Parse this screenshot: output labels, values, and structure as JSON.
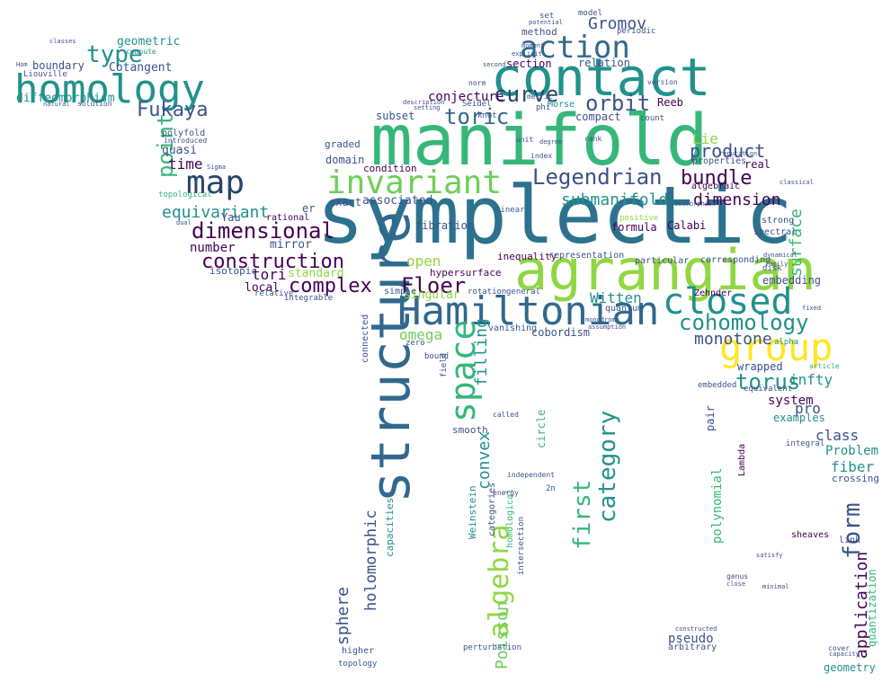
{
  "palette": {
    "dark_purple": "#440154",
    "indigo": "#3b528b",
    "blue": "#31688e",
    "steel_blue": "#2c728e",
    "teal": "#21918c",
    "green": "#35b779",
    "light_green": "#6ece58",
    "lime": "#90d743",
    "yellow": "#fde725",
    "dark_navy": "#26456e"
  },
  "words": [
    {
      "text": "symplectic",
      "color": "steel_blue"
    },
    {
      "text": "manifold",
      "color": "green"
    },
    {
      "text": "agrangian",
      "color": "lime"
    },
    {
      "text": "contact",
      "color": "teal"
    },
    {
      "text": "Hamiltonian",
      "color": "blue"
    },
    {
      "text": "structure",
      "color": "blue"
    },
    {
      "text": "homology",
      "color": "teal"
    },
    {
      "text": "invariant",
      "color": "light_green"
    },
    {
      "text": "action",
      "color": "blue"
    },
    {
      "text": "closed",
      "color": "teal"
    },
    {
      "text": "group",
      "color": "yellow"
    },
    {
      "text": "map",
      "color": "dark_navy"
    },
    {
      "text": "space",
      "color": "green"
    },
    {
      "text": "Legendrian",
      "color": "indigo"
    },
    {
      "text": "cohomology",
      "color": "teal"
    },
    {
      "text": "algebra",
      "color": "lime"
    },
    {
      "text": "construction",
      "color": "dark_purple"
    },
    {
      "text": "dimensional",
      "color": "dark_purple"
    },
    {
      "text": "Floer",
      "color": "dark_purple"
    },
    {
      "text": "complex",
      "color": "dark_purple"
    },
    {
      "text": "toric",
      "color": "blue"
    },
    {
      "text": "curve",
      "color": "dark_navy"
    },
    {
      "text": "orbit",
      "color": "indigo"
    },
    {
      "text": "bundle",
      "color": "dark_purple"
    },
    {
      "text": "Fukaya",
      "color": "indigo"
    },
    {
      "text": "type",
      "color": "teal"
    },
    {
      "text": "torus",
      "color": "teal"
    },
    {
      "text": "category",
      "color": "teal"
    },
    {
      "text": "first",
      "color": "green"
    },
    {
      "text": "form",
      "color": "indigo"
    },
    {
      "text": "point",
      "color": "green"
    },
    {
      "text": "equivariant",
      "color": "teal"
    },
    {
      "text": "product",
      "color": "indigo"
    },
    {
      "text": "Poisson",
      "color": "light_green"
    },
    {
      "text": "holomorphic",
      "color": "indigo"
    },
    {
      "text": "submanifold",
      "color": "teal"
    },
    {
      "text": "monotone",
      "color": "indigo"
    },
    {
      "text": "application",
      "color": "dark_purple"
    },
    {
      "text": "Gromov",
      "color": "indigo"
    },
    {
      "text": "dimension",
      "color": "dark_purple"
    },
    {
      "text": "surface",
      "color": "green"
    },
    {
      "text": "Witten",
      "color": "teal"
    },
    {
      "text": "sphere",
      "color": "indigo"
    },
    {
      "text": "filling",
      "color": "teal"
    },
    {
      "text": "convex",
      "color": "teal"
    },
    {
      "text": "fiber",
      "color": "teal"
    },
    {
      "text": "time",
      "color": "dark_purple"
    },
    {
      "text": "open",
      "color": "lime"
    },
    {
      "text": "omega",
      "color": "light_green"
    },
    {
      "text": "pro",
      "color": "indigo"
    },
    {
      "text": "infty",
      "color": "teal"
    },
    {
      "text": "Lie",
      "color": "lime"
    },
    {
      "text": "tori",
      "color": "dark_purple"
    },
    {
      "text": "class",
      "color": "indigo"
    },
    {
      "text": "system",
      "color": "dark_purple"
    },
    {
      "text": "Problem",
      "color": "teal"
    },
    {
      "text": "polynomial",
      "color": "green"
    },
    {
      "text": "geometry",
      "color": "teal"
    },
    {
      "text": "quantization",
      "color": "green"
    },
    {
      "text": "number",
      "color": "dark_purple"
    },
    {
      "text": "mirror",
      "color": "indigo"
    },
    {
      "text": "local",
      "color": "dark_purple"
    },
    {
      "text": "isotopic",
      "color": "indigo"
    },
    {
      "text": "standard",
      "color": "lime"
    },
    {
      "text": "cobordism",
      "color": "indigo"
    },
    {
      "text": "capacities",
      "color": "teal"
    },
    {
      "text": "geometric",
      "color": "teal"
    },
    {
      "text": "Cotangent",
      "color": "indigo"
    },
    {
      "text": "boundary",
      "color": "indigo"
    },
    {
      "text": "diffeomorphism",
      "color": "teal"
    },
    {
      "text": "Liouville",
      "color": "indigo"
    },
    {
      "text": "method",
      "color": "indigo"
    },
    {
      "text": "section",
      "color": "dark_purple"
    },
    {
      "text": "relation",
      "color": "indigo"
    },
    {
      "text": "conjecture",
      "color": "dark_purple"
    },
    {
      "text": "subset",
      "color": "indigo"
    },
    {
      "text": "compact",
      "color": "indigo"
    },
    {
      "text": "Reeb",
      "color": "dark_purple"
    },
    {
      "text": "exact",
      "color": "indigo"
    },
    {
      "text": "associated",
      "color": "indigo"
    },
    {
      "text": "fibration",
      "color": "indigo"
    },
    {
      "text": "domain",
      "color": "indigo"
    },
    {
      "text": "condition",
      "color": "dark_purple"
    },
    {
      "text": "graded",
      "color": "indigo"
    },
    {
      "text": "quasi",
      "color": "indigo"
    },
    {
      "text": "Yau",
      "color": "indigo"
    },
    {
      "text": "Calabi",
      "color": "dark_purple"
    },
    {
      "text": "real",
      "color": "dark_purple"
    },
    {
      "text": "formula",
      "color": "dark_purple"
    },
    {
      "text": "embedding",
      "color": "indigo"
    },
    {
      "text": "wrapped",
      "color": "indigo"
    },
    {
      "text": "examples",
      "color": "teal"
    },
    {
      "text": "crossing",
      "color": "indigo"
    },
    {
      "text": "link",
      "color": "indigo"
    },
    {
      "text": "inequality",
      "color": "dark_purple"
    },
    {
      "text": "representation",
      "color": "indigo"
    },
    {
      "text": "hypersurface",
      "color": "dark_purple"
    },
    {
      "text": "singular",
      "color": "lime"
    },
    {
      "text": "rotation",
      "color": "indigo"
    },
    {
      "text": "general",
      "color": "indigo"
    },
    {
      "text": "smooth",
      "color": "indigo"
    },
    {
      "text": "Weinstein",
      "color": "teal"
    },
    {
      "text": "categories",
      "color": "indigo"
    },
    {
      "text": "homological",
      "color": "green"
    },
    {
      "text": "intersection",
      "color": "indigo"
    },
    {
      "text": "pseudo",
      "color": "indigo"
    },
    {
      "text": "arbitrary",
      "color": "indigo"
    },
    {
      "text": "topology",
      "color": "indigo"
    },
    {
      "text": "higher",
      "color": "indigo"
    },
    {
      "text": "perturbation",
      "color": "indigo"
    },
    {
      "text": "connected",
      "color": "indigo"
    },
    {
      "text": "circle",
      "color": "green"
    },
    {
      "text": "algebraic",
      "color": "dark_purple"
    },
    {
      "text": "properties",
      "color": "indigo"
    },
    {
      "text": "strong",
      "color": "indigo"
    },
    {
      "text": "spectral",
      "color": "indigo"
    },
    {
      "text": "Zehnder",
      "color": "dark_purple"
    },
    {
      "text": "sheaves",
      "color": "dark_purple"
    },
    {
      "text": "equivalent",
      "color": "indigo"
    },
    {
      "text": "integral",
      "color": "indigo"
    },
    {
      "text": "alpha",
      "color": "teal"
    },
    {
      "text": "article",
      "color": "green"
    },
    {
      "text": "quantum",
      "color": "indigo"
    },
    {
      "text": "vanishing",
      "color": "indigo"
    },
    {
      "text": "particular",
      "color": "indigo"
    },
    {
      "text": "corresponding",
      "color": "indigo"
    },
    {
      "text": "positive",
      "color": "lime"
    },
    {
      "text": "embedded",
      "color": "indigo"
    },
    {
      "text": "Lambda",
      "color": "dark_purple"
    },
    {
      "text": "pair",
      "color": "indigo"
    },
    {
      "text": "polyfold",
      "color": "indigo"
    },
    {
      "text": "introduced",
      "color": "indigo"
    },
    {
      "text": "topological",
      "color": "green"
    },
    {
      "text": "rational",
      "color": "dark_purple"
    },
    {
      "text": "er",
      "color": "indigo"
    },
    {
      "text": "linear",
      "color": "indigo"
    },
    {
      "text": "simple",
      "color": "indigo"
    },
    {
      "text": "relative",
      "color": "indigo"
    },
    {
      "text": "integrable",
      "color": "indigo"
    },
    {
      "text": "bound",
      "color": "indigo"
    },
    {
      "text": "zero",
      "color": "indigo"
    },
    {
      "text": "field",
      "color": "indigo"
    },
    {
      "text": "called",
      "color": "indigo"
    },
    {
      "text": "energy",
      "color": "indigo"
    },
    {
      "text": "independent",
      "color": "indigo"
    },
    {
      "text": "knot",
      "color": "indigo"
    },
    {
      "text": "Morse",
      "color": "teal"
    },
    {
      "text": "Seidel",
      "color": "indigo"
    },
    {
      "text": "description",
      "color": "indigo"
    },
    {
      "text": "setting",
      "color": "indigo"
    },
    {
      "text": "norm",
      "color": "indigo"
    },
    {
      "text": "model",
      "color": "indigo"
    },
    {
      "text": "periodic",
      "color": "indigo"
    },
    {
      "text": "moment",
      "color": "indigo"
    },
    {
      "text": "explicit",
      "color": "indigo"
    },
    {
      "text": "second",
      "color": "indigo"
    },
    {
      "text": "version",
      "color": "indigo"
    },
    {
      "text": "set",
      "color": "indigo"
    },
    {
      "text": "potential",
      "color": "indigo"
    },
    {
      "text": "count",
      "color": "indigo"
    },
    {
      "text": "rank",
      "color": "indigo"
    },
    {
      "text": "index",
      "color": "indigo"
    },
    {
      "text": "unit",
      "color": "indigo"
    },
    {
      "text": "degree",
      "color": "indigo"
    },
    {
      "text": "metric",
      "color": "indigo"
    },
    {
      "text": "phi",
      "color": "indigo"
    },
    {
      "text": "2n",
      "color": "indigo"
    },
    {
      "text": "cover",
      "color": "indigo"
    },
    {
      "text": "genus",
      "color": "indigo"
    },
    {
      "text": "close",
      "color": "indigo"
    },
    {
      "text": "compute",
      "color": "teal"
    },
    {
      "text": "solution",
      "color": "indigo"
    },
    {
      "text": "natural",
      "color": "indigo"
    },
    {
      "text": "classes",
      "color": "indigo"
    },
    {
      "text": "Hom",
      "color": "indigo"
    },
    {
      "text": "dual",
      "color": "indigo"
    },
    {
      "text": "Sigma",
      "color": "indigo"
    },
    {
      "text": "constructed",
      "color": "indigo"
    },
    {
      "text": "dynamical",
      "color": "indigo"
    },
    {
      "text": "family",
      "color": "indigo"
    },
    {
      "text": "satisfy",
      "color": "indigo"
    },
    {
      "text": "minimal",
      "color": "indigo"
    },
    {
      "text": "capacity",
      "color": "indigo"
    },
    {
      "text": "classical",
      "color": "indigo"
    },
    {
      "text": "fixed",
      "color": "indigo"
    },
    {
      "text": "assumption",
      "color": "indigo"
    },
    {
      "text": "monodromy",
      "color": "indigo"
    },
    {
      "text": "disk",
      "color": "indigo"
    },
    {
      "text": "isomorphism",
      "color": "indigo"
    },
    {
      "text": "reputation",
      "color": "indigo"
    }
  ]
}
